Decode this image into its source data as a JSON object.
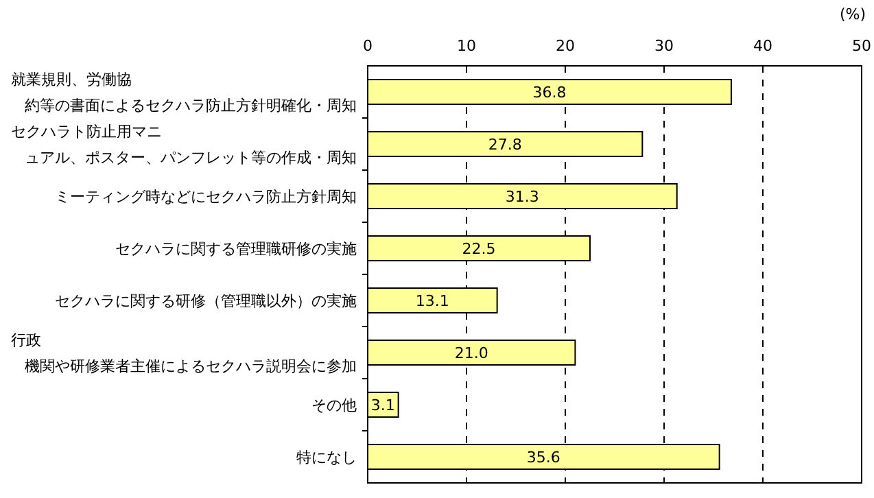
{
  "chart_data": {
    "type": "bar",
    "orientation": "horizontal",
    "categories": [
      "就業規則、労働協約等の書面によるセクハラ防止方針明確化・周知",
      "セクハラト防止用マニュアル、ポスター、パンフレット等の作成・周知",
      "ミーティング時などにセクハラ防止方針周知",
      "セクハラに関する管理職研修の実施",
      "セクハラに関する研修（管理職以外）の実施",
      "行政機関や研修業者主催によるセクハラ説明会に参加",
      "その他",
      "特になし"
    ],
    "values": [
      36.8,
      27.8,
      31.3,
      22.5,
      13.1,
      21.0,
      3.1,
      35.6
    ],
    "value_labels": [
      "36.8",
      "27.8",
      "31.3",
      "22.5",
      "13.1",
      "21.0",
      "3.1",
      "35.6"
    ],
    "color": "#ffff99",
    "xlabel": "(%)",
    "xlim": [
      0,
      50
    ],
    "xticks": [
      0,
      10,
      20,
      30,
      40,
      50
    ],
    "grid": "x"
  }
}
